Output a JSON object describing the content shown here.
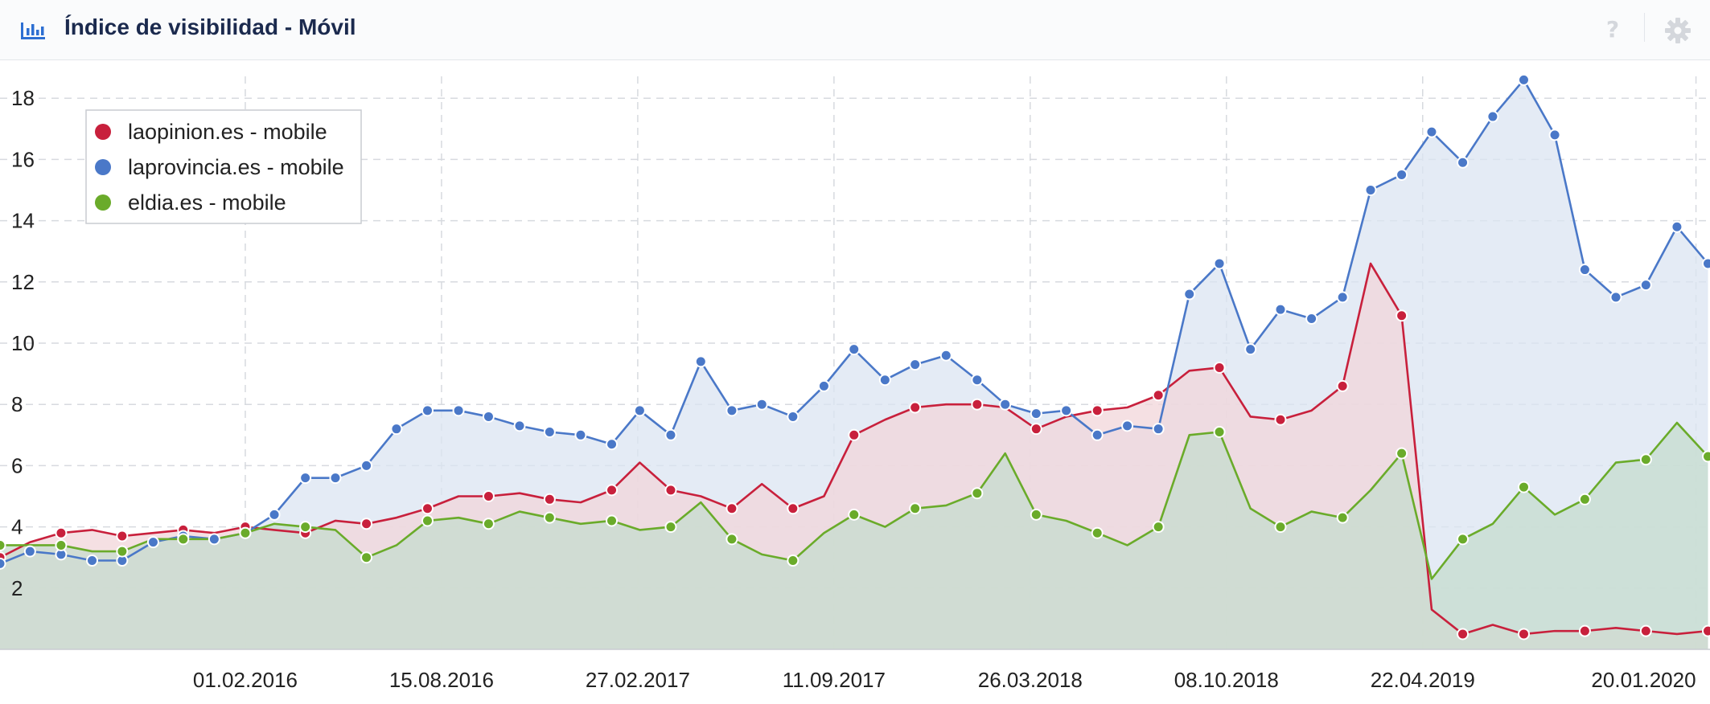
{
  "header": {
    "title": "Índice de visibilidad - Móvil",
    "chart_icon": "bar-chart-icon",
    "help_icon": "question-icon",
    "help_symbol": "?",
    "settings_icon": "gear-icon"
  },
  "chart_data": {
    "type": "area",
    "title": "Índice de visibilidad - Móvil",
    "xlabel": "",
    "ylabel": "",
    "ylim": [
      0,
      19
    ],
    "yticks": [
      2,
      4,
      6,
      8,
      10,
      12,
      14,
      16,
      18
    ],
    "xlim": [
      "2015-06-01",
      "2020-02-03"
    ],
    "xticks": [
      "01.02.2016",
      "15.08.2016",
      "27.02.2017",
      "11.09.2017",
      "26.03.2018",
      "08.10.2018",
      "22.04.2019",
      "20.01.2020"
    ],
    "grid": true,
    "legend_position": "top-left",
    "series": [
      {
        "name": "laopinion.es - mobile",
        "color": "#c8203c",
        "fill": "#f2d5da",
        "points": [
          [
            "2015-06-01",
            3.0
          ],
          [
            "2015-07-01",
            3.5
          ],
          [
            "2015-08-01",
            3.8
          ],
          [
            "2015-09-01",
            3.9
          ],
          [
            "2015-10-01",
            3.7
          ],
          [
            "2015-11-01",
            3.8
          ],
          [
            "2015-12-01",
            3.9
          ],
          [
            "2016-01-01",
            3.8
          ],
          [
            "2016-02-01",
            4.0
          ],
          [
            "2016-03-01",
            3.9
          ],
          [
            "2016-04-01",
            3.8
          ],
          [
            "2016-05-01",
            4.2
          ],
          [
            "2016-06-01",
            4.1
          ],
          [
            "2016-07-01",
            4.3
          ],
          [
            "2016-08-01",
            4.6
          ],
          [
            "2016-09-01",
            5.0
          ],
          [
            "2016-10-01",
            5.0
          ],
          [
            "2016-11-01",
            5.1
          ],
          [
            "2016-12-01",
            4.9
          ],
          [
            "2017-01-01",
            4.8
          ],
          [
            "2017-02-01",
            5.2
          ],
          [
            "2017-03-01",
            6.1
          ],
          [
            "2017-04-01",
            5.2
          ],
          [
            "2017-05-01",
            5.0
          ],
          [
            "2017-06-01",
            4.6
          ],
          [
            "2017-07-01",
            5.4
          ],
          [
            "2017-08-01",
            4.6
          ],
          [
            "2017-09-01",
            5.0
          ],
          [
            "2017-10-01",
            7.0
          ],
          [
            "2017-11-01",
            7.5
          ],
          [
            "2017-12-01",
            7.9
          ],
          [
            "2018-01-01",
            8.0
          ],
          [
            "2018-02-01",
            8.0
          ],
          [
            "2018-03-01",
            7.9
          ],
          [
            "2018-04-01",
            7.2
          ],
          [
            "2018-05-01",
            7.6
          ],
          [
            "2018-06-01",
            7.8
          ],
          [
            "2018-07-01",
            7.9
          ],
          [
            "2018-08-01",
            8.3
          ],
          [
            "2018-09-01",
            9.1
          ],
          [
            "2018-10-01",
            9.2
          ],
          [
            "2018-11-01",
            7.6
          ],
          [
            "2018-12-01",
            7.5
          ],
          [
            "2019-01-01",
            7.8
          ],
          [
            "2019-02-01",
            8.6
          ],
          [
            "2019-03-01",
            12.6
          ],
          [
            "2019-04-01",
            10.9
          ],
          [
            "2019-05-01",
            1.3
          ],
          [
            "2019-06-01",
            0.5
          ],
          [
            "2019-07-01",
            0.8
          ],
          [
            "2019-08-01",
            0.5
          ],
          [
            "2019-09-01",
            0.6
          ],
          [
            "2019-10-01",
            0.6
          ],
          [
            "2019-11-01",
            0.7
          ],
          [
            "2019-12-01",
            0.6
          ],
          [
            "2020-01-01",
            0.5
          ],
          [
            "2020-02-01",
            0.6
          ]
        ]
      },
      {
        "name": "laprovincia.es - mobile",
        "color": "#4a78c8",
        "fill": "#dbe4f2",
        "points": [
          [
            "2015-06-01",
            2.8
          ],
          [
            "2015-07-01",
            3.2
          ],
          [
            "2015-08-01",
            3.1
          ],
          [
            "2015-09-01",
            2.9
          ],
          [
            "2015-10-01",
            2.9
          ],
          [
            "2015-11-01",
            3.5
          ],
          [
            "2015-12-01",
            3.7
          ],
          [
            "2016-01-01",
            3.6
          ],
          [
            "2016-02-01",
            3.8
          ],
          [
            "2016-03-01",
            4.4
          ],
          [
            "2016-04-01",
            5.6
          ],
          [
            "2016-05-01",
            5.6
          ],
          [
            "2016-06-01",
            6.0
          ],
          [
            "2016-07-01",
            7.2
          ],
          [
            "2016-08-01",
            7.8
          ],
          [
            "2016-09-01",
            7.8
          ],
          [
            "2016-10-01",
            7.6
          ],
          [
            "2016-11-01",
            7.3
          ],
          [
            "2016-12-01",
            7.1
          ],
          [
            "2017-01-01",
            7.0
          ],
          [
            "2017-02-01",
            6.7
          ],
          [
            "2017-03-01",
            7.8
          ],
          [
            "2017-04-01",
            7.0
          ],
          [
            "2017-05-01",
            9.4
          ],
          [
            "2017-06-01",
            7.8
          ],
          [
            "2017-07-01",
            8.0
          ],
          [
            "2017-08-01",
            7.6
          ],
          [
            "2017-09-01",
            8.6
          ],
          [
            "2017-10-01",
            9.8
          ],
          [
            "2017-11-01",
            8.8
          ],
          [
            "2017-12-01",
            9.3
          ],
          [
            "2018-01-01",
            9.6
          ],
          [
            "2018-02-01",
            8.8
          ],
          [
            "2018-03-01",
            8.0
          ],
          [
            "2018-04-01",
            7.7
          ],
          [
            "2018-05-01",
            7.8
          ],
          [
            "2018-06-01",
            7.0
          ],
          [
            "2018-07-01",
            7.3
          ],
          [
            "2018-08-01",
            7.2
          ],
          [
            "2018-09-01",
            11.6
          ],
          [
            "2018-10-01",
            12.6
          ],
          [
            "2018-11-01",
            9.8
          ],
          [
            "2018-12-01",
            11.1
          ],
          [
            "2019-01-01",
            10.8
          ],
          [
            "2019-02-01",
            11.5
          ],
          [
            "2019-03-01",
            15.0
          ],
          [
            "2019-04-01",
            15.5
          ],
          [
            "2019-05-01",
            16.9
          ],
          [
            "2019-06-01",
            15.9
          ],
          [
            "2019-07-01",
            17.4
          ],
          [
            "2019-08-01",
            18.6
          ],
          [
            "2019-09-01",
            16.8
          ],
          [
            "2019-10-01",
            12.4
          ],
          [
            "2019-11-01",
            11.5
          ],
          [
            "2019-12-01",
            11.9
          ],
          [
            "2020-01-01",
            13.8
          ],
          [
            "2020-02-01",
            12.6
          ]
        ]
      },
      {
        "name": "eldia.es - mobile",
        "color": "#6aab2a",
        "fill": "#c5dccd",
        "points": [
          [
            "2015-06-01",
            3.4
          ],
          [
            "2015-07-01",
            3.4
          ],
          [
            "2015-08-01",
            3.4
          ],
          [
            "2015-09-01",
            3.2
          ],
          [
            "2015-10-01",
            3.2
          ],
          [
            "2015-11-01",
            3.6
          ],
          [
            "2015-12-01",
            3.6
          ],
          [
            "2016-01-01",
            3.6
          ],
          [
            "2016-02-01",
            3.8
          ],
          [
            "2016-03-01",
            4.1
          ],
          [
            "2016-04-01",
            4.0
          ],
          [
            "2016-05-01",
            3.9
          ],
          [
            "2016-06-01",
            3.0
          ],
          [
            "2016-07-01",
            3.4
          ],
          [
            "2016-08-01",
            4.2
          ],
          [
            "2016-09-01",
            4.3
          ],
          [
            "2016-10-01",
            4.1
          ],
          [
            "2016-11-01",
            4.5
          ],
          [
            "2016-12-01",
            4.3
          ],
          [
            "2017-01-01",
            4.1
          ],
          [
            "2017-02-01",
            4.2
          ],
          [
            "2017-03-01",
            3.9
          ],
          [
            "2017-04-01",
            4.0
          ],
          [
            "2017-05-01",
            4.8
          ],
          [
            "2017-06-01",
            3.6
          ],
          [
            "2017-07-01",
            3.1
          ],
          [
            "2017-08-01",
            2.9
          ],
          [
            "2017-09-01",
            3.8
          ],
          [
            "2017-10-01",
            4.4
          ],
          [
            "2017-11-01",
            4.0
          ],
          [
            "2017-12-01",
            4.6
          ],
          [
            "2018-01-01",
            4.7
          ],
          [
            "2018-02-01",
            5.1
          ],
          [
            "2018-03-01",
            6.4
          ],
          [
            "2018-04-01",
            4.4
          ],
          [
            "2018-05-01",
            4.2
          ],
          [
            "2018-06-01",
            3.8
          ],
          [
            "2018-07-01",
            3.4
          ],
          [
            "2018-08-01",
            4.0
          ],
          [
            "2018-09-01",
            7.0
          ],
          [
            "2018-10-01",
            7.1
          ],
          [
            "2018-11-01",
            4.6
          ],
          [
            "2018-12-01",
            4.0
          ],
          [
            "2019-01-01",
            4.5
          ],
          [
            "2019-02-01",
            4.3
          ],
          [
            "2019-03-01",
            5.2
          ],
          [
            "2019-04-01",
            6.4
          ],
          [
            "2019-05-01",
            2.3
          ],
          [
            "2019-06-01",
            3.6
          ],
          [
            "2019-07-01",
            4.1
          ],
          [
            "2019-08-01",
            5.3
          ],
          [
            "2019-09-01",
            4.4
          ],
          [
            "2019-10-01",
            4.9
          ],
          [
            "2019-11-01",
            6.1
          ],
          [
            "2019-12-01",
            6.2
          ],
          [
            "2020-01-01",
            7.4
          ],
          [
            "2020-02-01",
            6.3
          ]
        ]
      }
    ]
  }
}
